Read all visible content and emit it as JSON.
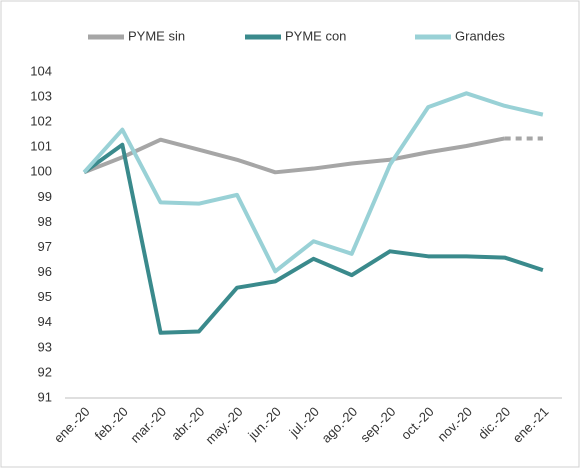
{
  "chart_data": {
    "type": "line",
    "categories": [
      "ene.-20",
      "feb.-20",
      "mar.-20",
      "abr.-20",
      "may.-20",
      "jun.-20",
      "jul.-20",
      "ago.-20",
      "sep.-20",
      "oct.-20",
      "nov.-20",
      "dic.-20",
      "ene.-21"
    ],
    "series": [
      {
        "name": "PYME sin",
        "color": "#a6a6a6",
        "dashed_last_segment": true,
        "values": [
          100,
          100.6,
          101.3,
          100.9,
          100.5,
          100.0,
          100.15,
          100.35,
          100.5,
          100.8,
          101.05,
          101.35,
          101.35
        ]
      },
      {
        "name": "PYME con",
        "color": "#3a8a8c",
        "values": [
          100,
          101.1,
          93.6,
          93.65,
          95.4,
          95.65,
          96.55,
          95.9,
          96.85,
          96.65,
          96.65,
          96.6,
          96.1
        ]
      },
      {
        "name": "Grandes",
        "color": "#99d1d6",
        "values": [
          100,
          101.7,
          98.8,
          98.75,
          99.1,
          96.05,
          97.25,
          96.75,
          100.3,
          102.6,
          103.15,
          102.65,
          102.3
        ]
      }
    ],
    "ylim": [
      91,
      104
    ],
    "yticks": [
      91,
      92,
      93,
      94,
      95,
      96,
      97,
      98,
      99,
      100,
      101,
      102,
      103,
      104
    ],
    "grid": false,
    "legend": "top"
  }
}
